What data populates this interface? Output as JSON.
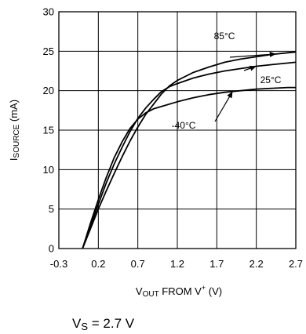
{
  "chart_data": {
    "type": "line",
    "title": "",
    "xlabel": {
      "main": "V",
      "sub": "OUT",
      "rest": " FROM V",
      "sup": "+",
      "unit": " (V)"
    },
    "ylabel": {
      "main": "I",
      "sub": "SOURCE",
      "unit": " (mA)"
    },
    "xlim": [
      -0.3,
      2.7
    ],
    "ylim": [
      0,
      30
    ],
    "xticks": [
      "-0.3",
      "0.2",
      "0.7",
      "1.2",
      "1.7",
      "2.2",
      "2.7"
    ],
    "yticks": [
      "0",
      "5",
      "10",
      "15",
      "20",
      "25",
      "30"
    ],
    "grid": true,
    "series": [
      {
        "name": "85°C",
        "x": [
          0.0,
          0.1,
          0.2,
          0.3,
          0.4,
          0.5,
          0.6,
          0.7,
          0.8,
          0.9,
          1.0,
          1.1,
          1.2,
          1.4,
          1.6,
          1.8,
          2.0,
          2.2,
          2.4,
          2.6,
          2.7
        ],
        "y": [
          0.0,
          2.5,
          5.0,
          7.3,
          9.5,
          11.6,
          13.6,
          15.4,
          17.0,
          18.3,
          19.6,
          20.6,
          21.3,
          22.3,
          23.0,
          23.6,
          24.0,
          24.3,
          24.6,
          24.8,
          24.9
        ]
      },
      {
        "name": "25°C",
        "x": [
          0.0,
          0.1,
          0.2,
          0.3,
          0.4,
          0.5,
          0.6,
          0.7,
          0.8,
          0.9,
          1.0,
          1.1,
          1.2,
          1.4,
          1.6,
          1.8,
          2.0,
          2.2,
          2.4,
          2.6,
          2.7
        ],
        "y": [
          0.0,
          2.8,
          5.6,
          8.3,
          10.7,
          12.8,
          14.8,
          16.5,
          17.8,
          18.9,
          19.9,
          20.5,
          20.9,
          21.6,
          22.1,
          22.5,
          22.8,
          23.1,
          23.3,
          23.5,
          23.6
        ]
      },
      {
        "name": "-40°C",
        "x": [
          0.0,
          0.1,
          0.2,
          0.3,
          0.4,
          0.5,
          0.6,
          0.7,
          0.8,
          0.9,
          1.0,
          1.2,
          1.4,
          1.6,
          1.8,
          2.0,
          2.2,
          2.4,
          2.6,
          2.7
        ],
        "y": [
          0.0,
          3.2,
          6.2,
          9.0,
          11.5,
          13.5,
          15.2,
          16.4,
          17.2,
          17.7,
          18.0,
          18.6,
          19.1,
          19.5,
          19.8,
          20.0,
          20.2,
          20.3,
          20.4,
          20.4
        ]
      }
    ],
    "annotations": [
      {
        "text": "85°C",
        "series": 0
      },
      {
        "text": "25°C",
        "series": 1
      },
      {
        "text": "-40°C",
        "series": 2
      }
    ]
  },
  "condition": {
    "main": "V",
    "sub": "S",
    "rest": " = 2.7 V"
  }
}
